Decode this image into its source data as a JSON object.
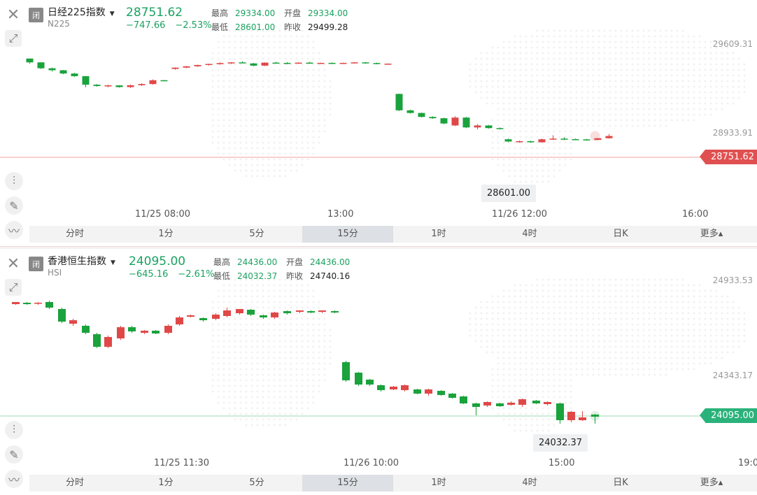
{
  "panels": [
    {
      "status": "闭",
      "name": "日经225指数",
      "code": "N225",
      "price": "28751.62",
      "change": "−747.66",
      "change_pct": "−2.53%",
      "high_label": "最高",
      "high": "29334.00",
      "open_label": "开盘",
      "open": "29334.00",
      "low_label": "最低",
      "low": "28601.00",
      "prev_close_label": "昨收",
      "prev_close": "29499.28",
      "y_labels": [
        "29609.31",
        "28933.91"
      ],
      "price_tag": "28751.62",
      "low_tip": "28601.00",
      "x_labels": [
        "11/25 08:00",
        "13:00",
        "11/26 12:00",
        "16:00"
      ],
      "tabs": [
        "分时",
        "1分",
        "5分",
        "15分",
        "1时",
        "4时",
        "日K",
        "更多▴"
      ],
      "active_tab": 3,
      "candles": [
        [
          29499,
          29499,
          29460,
          29470
        ],
        [
          29470,
          29470,
          29420,
          29425
        ],
        [
          29425,
          29430,
          29400,
          29410
        ],
        [
          29410,
          29412,
          29380,
          29385
        ],
        [
          29385,
          29390,
          29360,
          29365
        ],
        [
          29365,
          29366,
          29280,
          29300
        ],
        [
          29300,
          29305,
          29285,
          29290
        ],
        [
          29290,
          29300,
          29280,
          29295
        ],
        [
          29295,
          29296,
          29278,
          29282
        ],
        [
          29282,
          29300,
          29275,
          29296
        ],
        [
          29296,
          29310,
          29290,
          29305
        ],
        [
          29305,
          29340,
          29300,
          29334
        ],
        [
          29334,
          29336,
          29330,
          29332
        ],
        [
          29420,
          29432,
          29414,
          29430
        ],
        [
          29430,
          29442,
          29426,
          29440
        ],
        [
          29440,
          29452,
          29436,
          29450
        ],
        [
          29450,
          29460,
          29446,
          29458
        ],
        [
          29458,
          29470,
          29452,
          29465
        ],
        [
          29465,
          29472,
          29458,
          29470
        ],
        [
          29470,
          29478,
          29464,
          29462
        ],
        [
          29462,
          29466,
          29440,
          29445
        ],
        [
          29445,
          29470,
          29442,
          29468
        ],
        [
          29468,
          29474,
          29462,
          29466
        ],
        [
          29466,
          29472,
          29456,
          29460
        ],
        [
          29460,
          29470,
          29458,
          29468
        ],
        [
          29468,
          29474,
          29462,
          29464
        ],
        [
          29464,
          29468,
          29458,
          29466
        ],
        [
          29466,
          29470,
          29460,
          29462
        ],
        [
          29462,
          29468,
          29458,
          29466
        ],
        [
          29466,
          29472,
          29462,
          29470
        ],
        [
          29470,
          29472,
          29460,
          29465
        ],
        [
          29465,
          29468,
          29455,
          29458
        ],
        [
          29458,
          29462,
          29454,
          29460
        ],
        [
          29230,
          29232,
          29100,
          29105
        ],
        [
          29105,
          29110,
          29080,
          29085
        ],
        [
          29085,
          29088,
          29050,
          29055
        ],
        [
          29055,
          29060,
          29040,
          29045
        ],
        [
          29045,
          29048,
          29000,
          29005
        ],
        [
          28990,
          29060,
          28985,
          29050
        ],
        [
          29050,
          29055,
          28970,
          28975
        ],
        [
          28975,
          29000,
          28960,
          28990
        ],
        [
          28990,
          28994,
          28965,
          28970
        ],
        [
          28970,
          28975,
          28960,
          28962
        ],
        [
          28885,
          28890,
          28862,
          28868
        ],
        [
          28868,
          28875,
          28860,
          28870
        ],
        [
          28870,
          28874,
          28858,
          28862
        ],
        [
          28862,
          28890,
          28860,
          28885
        ],
        [
          28885,
          28915,
          28880,
          28890
        ],
        [
          28890,
          28900,
          28878,
          28886
        ],
        [
          28886,
          28890,
          28878,
          28884
        ],
        [
          28884,
          28888,
          28876,
          28880
        ],
        [
          28880,
          28895,
          28878,
          28893
        ],
        [
          28893,
          28925,
          28890,
          28910
        ]
      ],
      "candle_x": [
        42,
        58,
        74,
        90,
        106,
        122,
        138,
        154,
        170,
        186,
        202,
        218,
        234,
        250,
        266,
        282,
        298,
        314,
        330,
        346,
        362,
        378,
        394,
        410,
        426,
        442,
        458,
        474,
        490,
        506,
        522,
        538,
        554,
        570,
        586,
        602,
        618,
        634,
        650,
        666,
        682,
        698,
        714,
        726,
        742,
        758,
        774,
        790,
        806,
        822,
        838,
        854,
        870
      ]
    },
    {
      "status": "闭",
      "name": "香港恒生指数",
      "code": "HSI",
      "price": "24095.00",
      "change": "−645.16",
      "change_pct": "−2.61%",
      "high_label": "最高",
      "high": "24436.00",
      "open_label": "开盘",
      "open": "24436.00",
      "low_label": "最低",
      "low": "24032.37",
      "prev_close_label": "昨收",
      "prev_close": "24740.16",
      "y_labels": [
        "24933.53",
        "24343.17"
      ],
      "price_tag": "24095.00",
      "low_tip": "24032.37",
      "x_labels": [
        "11/25 11:30",
        "11/26 10:00",
        "15:00",
        "19:0"
      ],
      "tabs": [
        "分时",
        "1分",
        "5分",
        "15分",
        "1时",
        "4时",
        "日K",
        "更多▴"
      ],
      "active_tab": 3,
      "candles": []
    }
  ],
  "colors": {
    "up": "#e04848",
    "down": "#1aa23c",
    "accent_green": "#1aa260",
    "accent_red": "#e05050"
  },
  "icons": [
    "close-icon",
    "expand-icon",
    "indicator-icon",
    "pencil-icon",
    "line-tool-icon",
    "caret-down-icon"
  ]
}
